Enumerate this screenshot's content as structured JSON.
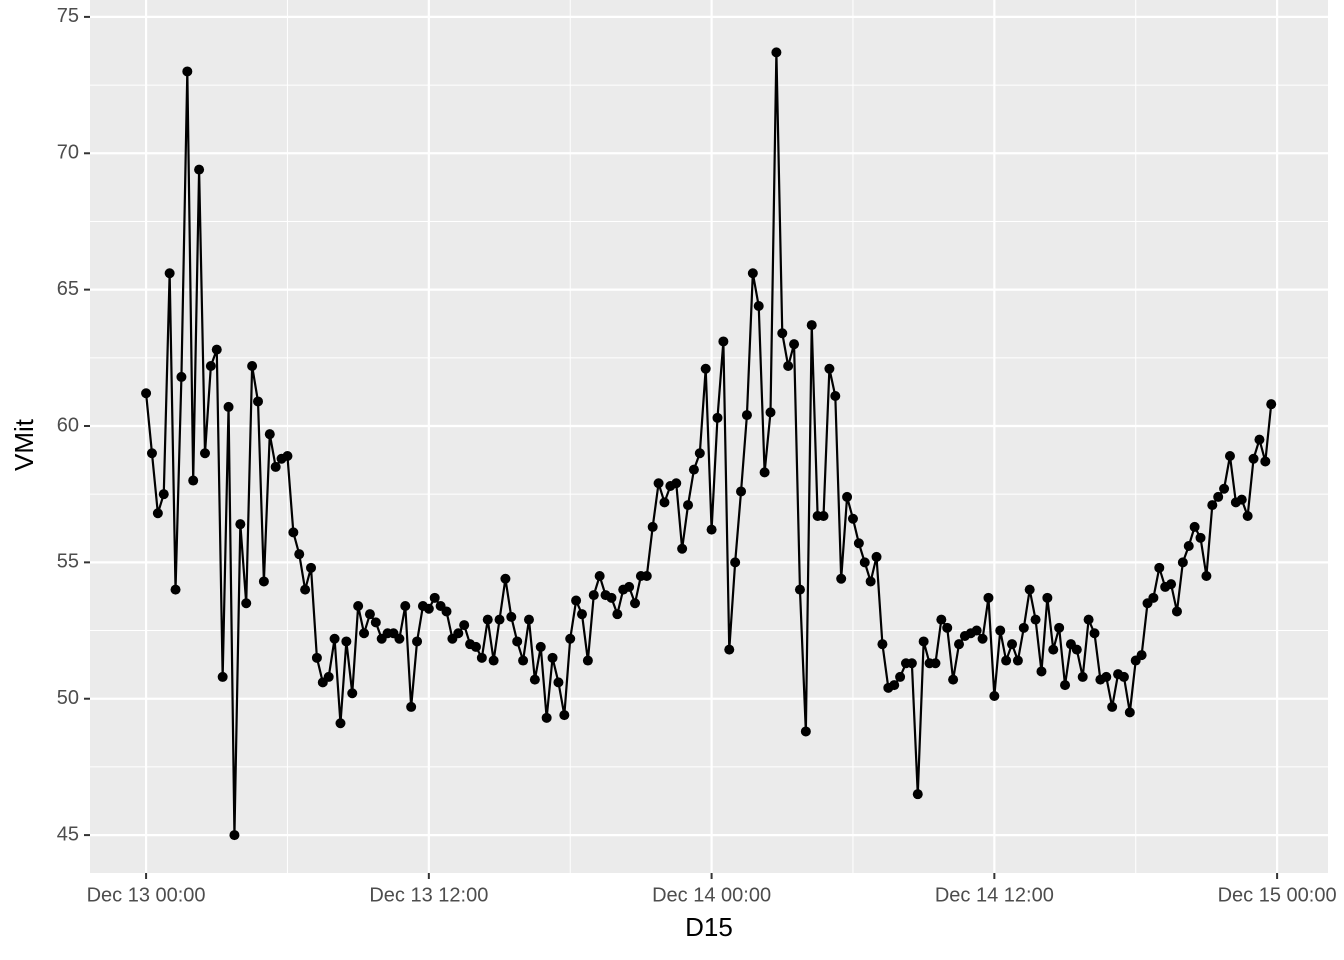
{
  "chart_data": {
    "type": "line",
    "x_label": "D15",
    "y_label": "VMit",
    "color": "#000000",
    "grid": true,
    "xlim": [
      -2.38,
      50.16
    ],
    "xticks": [
      {
        "value": 0,
        "label": "Dec 13 00:00"
      },
      {
        "value": 12,
        "label": "Dec 13 12:00"
      },
      {
        "value": 24,
        "label": "Dec 14 00:00"
      },
      {
        "value": 36,
        "label": "Dec 14 12:00"
      },
      {
        "value": 48,
        "label": "Dec 15 00:00"
      }
    ],
    "ylim": [
      43.61,
      75.62
    ],
    "yticks": [
      45,
      50,
      55,
      60,
      65,
      70,
      75
    ],
    "x": [
      0,
      0.25,
      0.5,
      0.75,
      1,
      1.25,
      1.5,
      1.75,
      2,
      2.25,
      2.5,
      2.75,
      3,
      3.25,
      3.5,
      3.75,
      4,
      4.25,
      4.5,
      4.75,
      5,
      5.25,
      5.5,
      5.75,
      6,
      6.25,
      6.5,
      6.75,
      7,
      7.25,
      7.5,
      7.75,
      8,
      8.25,
      8.5,
      8.75,
      9,
      9.25,
      9.5,
      9.75,
      10,
      10.25,
      10.5,
      10.75,
      11,
      11.25,
      11.5,
      11.75,
      12,
      12.25,
      12.5,
      12.75,
      13,
      13.25,
      13.5,
      13.75,
      14,
      14.25,
      14.5,
      14.75,
      15,
      15.25,
      15.5,
      15.75,
      16,
      16.25,
      16.5,
      16.75,
      17,
      17.25,
      17.5,
      17.75,
      18,
      18.25,
      18.5,
      18.75,
      19,
      19.25,
      19.5,
      19.75,
      20,
      20.25,
      20.5,
      20.75,
      21,
      21.25,
      21.5,
      21.75,
      22,
      22.25,
      22.5,
      22.75,
      23,
      23.25,
      23.5,
      23.75,
      24,
      24.25,
      24.5,
      24.75,
      25,
      25.25,
      25.5,
      25.75,
      26,
      26.25,
      26.5,
      26.75,
      27,
      27.25,
      27.5,
      27.75,
      28,
      28.25,
      28.5,
      28.75,
      29,
      29.25,
      29.5,
      29.75,
      30,
      30.25,
      30.5,
      30.75,
      31,
      31.25,
      31.5,
      31.75,
      32,
      32.25,
      32.5,
      32.75,
      33,
      33.25,
      33.5,
      33.75,
      34,
      34.25,
      34.5,
      34.75,
      35,
      35.25,
      35.5,
      35.75,
      36,
      36.25,
      36.5,
      36.75,
      37,
      37.25,
      37.5,
      37.75,
      38,
      38.25,
      38.5,
      38.75,
      39,
      39.25,
      39.5,
      39.75,
      40,
      40.25,
      40.5,
      40.75,
      41,
      41.25,
      41.5,
      41.75,
      42,
      42.25,
      42.5,
      42.75,
      43,
      43.25,
      43.5,
      43.75,
      44,
      44.25,
      44.5,
      44.75,
      45,
      45.25,
      45.5,
      45.75,
      46,
      46.25,
      46.5,
      46.75,
      47,
      47.25,
      47.5,
      47.75
    ],
    "values": [
      61.2,
      59.0,
      56.8,
      57.5,
      65.6,
      54.0,
      61.8,
      73.0,
      58.0,
      69.4,
      59.0,
      62.2,
      62.8,
      50.8,
      60.7,
      45.0,
      56.4,
      53.5,
      62.2,
      60.9,
      54.3,
      59.7,
      58.5,
      58.8,
      58.9,
      56.1,
      55.3,
      54.0,
      54.8,
      51.5,
      50.6,
      50.8,
      52.2,
      49.1,
      52.1,
      50.2,
      53.4,
      52.4,
      53.1,
      52.8,
      52.2,
      52.4,
      52.4,
      52.2,
      53.4,
      49.7,
      52.1,
      53.4,
      53.3,
      53.7,
      53.4,
      53.2,
      52.2,
      52.4,
      52.7,
      52.0,
      51.9,
      51.5,
      52.9,
      51.4,
      52.9,
      54.4,
      53.0,
      52.1,
      51.4,
      52.9,
      50.7,
      51.9,
      49.3,
      51.5,
      50.6,
      49.4,
      52.2,
      53.6,
      53.1,
      51.4,
      53.8,
      54.5,
      53.8,
      53.7,
      53.1,
      54.0,
      54.1,
      53.5,
      54.5,
      54.5,
      56.3,
      57.9,
      57.2,
      57.8,
      57.9,
      55.5,
      57.1,
      58.4,
      59.0,
      62.1,
      56.2,
      60.3,
      63.1,
      51.8,
      55.0,
      57.6,
      60.4,
      65.6,
      64.4,
      58.3,
      60.5,
      73.7,
      63.4,
      62.2,
      63.0,
      54.0,
      48.8,
      63.7,
      56.7,
      56.7,
      62.1,
      61.1,
      54.4,
      57.4,
      56.6,
      55.7,
      55.0,
      54.3,
      55.2,
      52.0,
      50.4,
      50.5,
      50.8,
      51.3,
      51.3,
      46.5,
      52.1,
      51.3,
      51.3,
      52.9,
      52.6,
      50.7,
      52.0,
      52.3,
      52.4,
      52.5,
      52.2,
      53.7,
      50.1,
      52.5,
      51.4,
      52.0,
      51.4,
      52.6,
      54.0,
      52.9,
      51.0,
      53.7,
      51.8,
      52.6,
      50.5,
      52.0,
      51.8,
      50.8,
      52.9,
      52.4,
      50.7,
      50.8,
      49.7,
      50.9,
      50.8,
      49.5,
      51.4,
      51.6,
      53.5,
      53.7,
      54.8,
      54.1,
      54.2,
      53.2,
      55.0,
      55.6,
      56.3,
      55.9,
      54.5,
      57.1,
      57.4,
      57.7,
      58.9,
      57.2,
      57.3,
      56.7,
      58.8,
      59.5,
      58.7,
      60.8
    ]
  }
}
